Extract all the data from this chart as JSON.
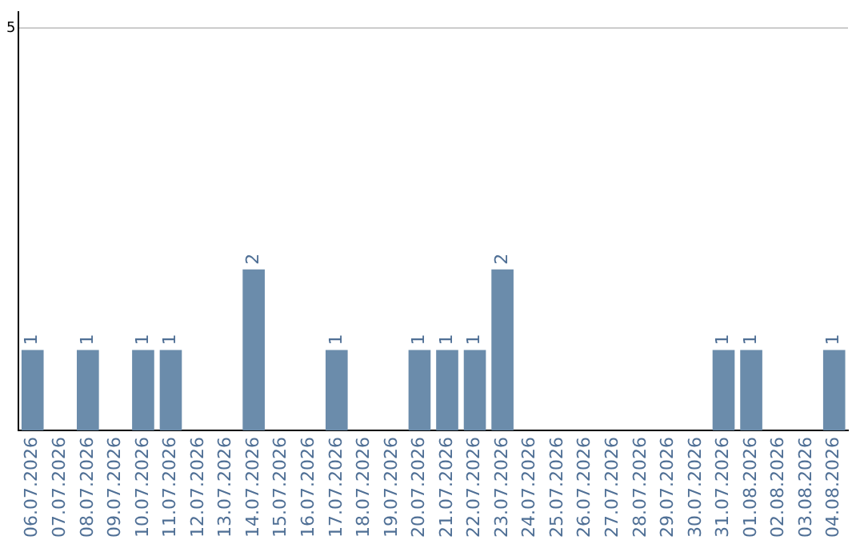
{
  "chart_data": {
    "type": "bar",
    "categories": [
      "06.07.2026",
      "07.07.2026",
      "08.07.2026",
      "09.07.2026",
      "10.07.2026",
      "11.07.2026",
      "12.07.2026",
      "13.07.2026",
      "14.07.2026",
      "15.07.2026",
      "16.07.2026",
      "17.07.2026",
      "18.07.2026",
      "19.07.2026",
      "20.07.2026",
      "21.07.2026",
      "22.07.2026",
      "23.07.2026",
      "24.07.2026",
      "25.07.2026",
      "26.07.2026",
      "27.07.2026",
      "28.07.2026",
      "29.07.2026",
      "30.07.2026",
      "31.07.2026",
      "01.08.2026",
      "02.08.2026",
      "03.08.2026",
      "04.08.2026"
    ],
    "values": [
      1,
      0,
      1,
      0,
      1,
      1,
      0,
      0,
      2,
      0,
      0,
      1,
      0,
      0,
      1,
      1,
      1,
      2,
      0,
      0,
      0,
      0,
      0,
      0,
      0,
      1,
      1,
      0,
      0,
      1
    ],
    "value_labels": [
      "1",
      null,
      "1",
      null,
      "1",
      "1",
      null,
      null,
      "2",
      null,
      null,
      "1",
      null,
      null,
      "1",
      "1",
      "1",
      "2",
      null,
      null,
      null,
      null,
      null,
      null,
      null,
      "1",
      "1",
      null,
      null,
      "1"
    ],
    "color": "#6b8cab",
    "ylim": [
      0,
      5.2
    ],
    "yticks": [
      5
    ],
    "grid": "y",
    "legend": false
  }
}
